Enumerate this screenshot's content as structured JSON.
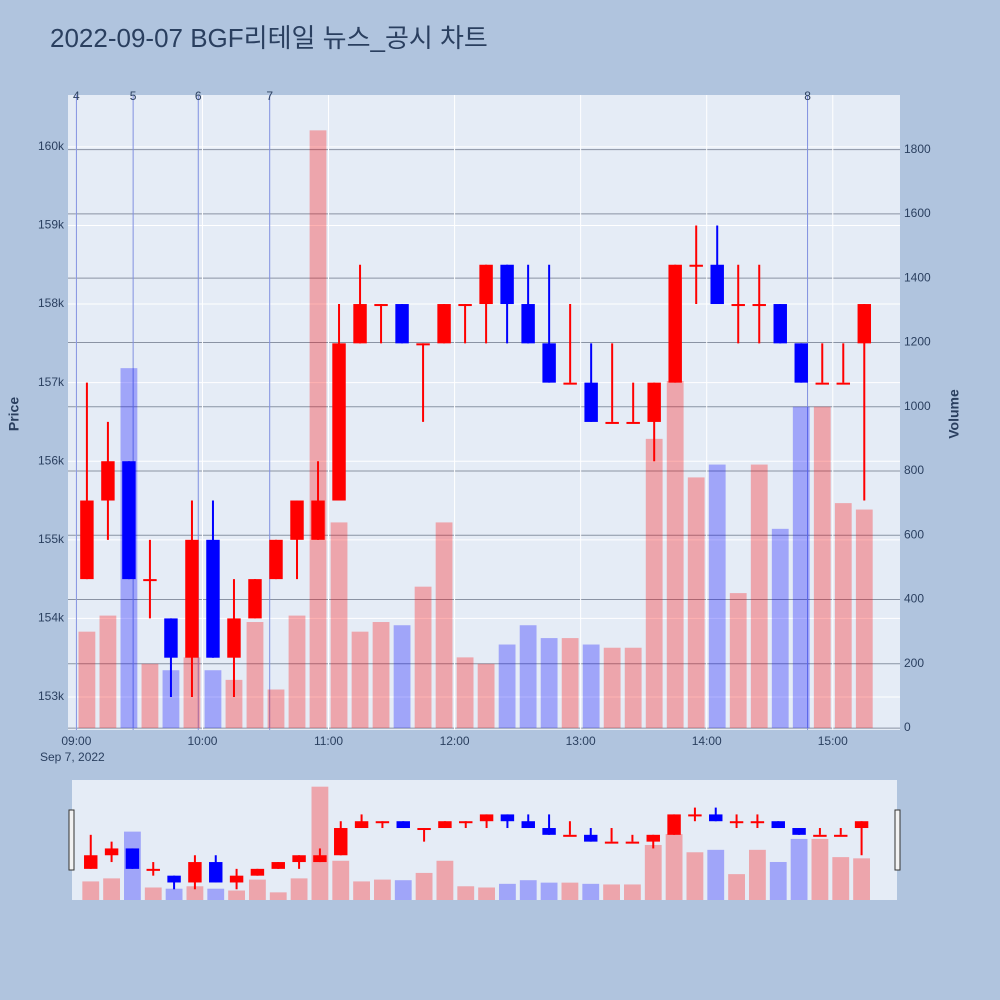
{
  "chart_data": {
    "type": "candlestick",
    "title": "2022-09-07 BGF리테일 뉴스_공시 차트",
    "title_color": "#e8506a",
    "ylabel": "Price",
    "y2label": "Volume",
    "date_label": "Sep 7, 2022",
    "increasing_color": "#ff0000",
    "decreasing_color": "#0000ff",
    "x": [
      "09:00",
      "09:10",
      "09:20",
      "09:30",
      "09:40",
      "09:50",
      "10:00",
      "10:10",
      "10:20",
      "10:30",
      "10:40",
      "10:50",
      "11:00",
      "11:10",
      "11:20",
      "11:30",
      "11:40",
      "11:50",
      "12:00",
      "12:10",
      "12:20",
      "12:30",
      "12:40",
      "12:50",
      "13:00",
      "13:10",
      "13:20",
      "13:30",
      "13:40",
      "13:50",
      "14:00",
      "14:10",
      "14:20",
      "14:30",
      "14:40",
      "14:50",
      "15:00",
      "15:10"
    ],
    "open": [
      154500,
      155500,
      156000,
      154500,
      154000,
      153500,
      155000,
      153500,
      154000,
      154500,
      155000,
      155000,
      155500,
      157500,
      158000,
      158000,
      157500,
      157500,
      158000,
      158000,
      158500,
      158000,
      157500,
      157000,
      157000,
      156500,
      156500,
      156500,
      157000,
      158500,
      158500,
      158000,
      158000,
      158000,
      157500,
      157000,
      157000,
      157500
    ],
    "high": [
      157000,
      156500,
      156000,
      155000,
      154000,
      155500,
      155500,
      154500,
      154500,
      155000,
      155500,
      156000,
      158000,
      158500,
      158000,
      158000,
      157500,
      158000,
      158000,
      158500,
      158500,
      158500,
      158500,
      158000,
      157500,
      157500,
      157000,
      157000,
      158500,
      159000,
      159000,
      158500,
      158500,
      158000,
      157500,
      157500,
      157500,
      158000
    ],
    "low": [
      154500,
      155000,
      154500,
      154000,
      153000,
      153000,
      153500,
      153000,
      154000,
      154500,
      154500,
      155000,
      155500,
      157500,
      157500,
      157500,
      156500,
      157500,
      157500,
      157500,
      157500,
      157500,
      157000,
      157000,
      156500,
      156500,
      156500,
      156000,
      157000,
      158000,
      158000,
      157500,
      157500,
      157500,
      157000,
      157000,
      157000,
      155500
    ],
    "close": [
      155500,
      156000,
      154500,
      154500,
      153500,
      155000,
      153500,
      154000,
      154500,
      155000,
      155500,
      155500,
      157500,
      158000,
      158000,
      157500,
      157500,
      158000,
      158000,
      158500,
      158000,
      157500,
      157000,
      157000,
      156500,
      156500,
      156500,
      157000,
      158500,
      158500,
      158000,
      158000,
      158000,
      157500,
      157000,
      157000,
      157000,
      158000
    ],
    "volume": [
      300,
      350,
      1120,
      200,
      180,
      220,
      180,
      150,
      330,
      120,
      350,
      1860,
      640,
      300,
      330,
      320,
      440,
      640,
      220,
      200,
      260,
      320,
      280,
      280,
      260,
      250,
      250,
      900,
      1080,
      780,
      820,
      420,
      820,
      620,
      1000,
      1000,
      700,
      680
    ],
    "xlim": [
      "08:56",
      "15:32"
    ],
    "xticks": [
      "09:00",
      "10:00",
      "11:00",
      "12:00",
      "13:00",
      "14:00",
      "15:00"
    ],
    "ylim": [
      152580,
      160660
    ],
    "yticks": [
      {
        "value": 153000,
        "label": "153k"
      },
      {
        "value": 154000,
        "label": "154k"
      },
      {
        "value": 155000,
        "label": "155k"
      },
      {
        "value": 156000,
        "label": "156k"
      },
      {
        "value": 157000,
        "label": "157k"
      },
      {
        "value": 158000,
        "label": "158k"
      },
      {
        "value": 159000,
        "label": "159k"
      },
      {
        "value": 160000,
        "label": "160k"
      }
    ],
    "y2lim": [
      -6,
      1970
    ],
    "y2ticks": [
      0,
      200,
      400,
      600,
      800,
      1000,
      1200,
      1400,
      1600,
      1800
    ],
    "annotations": [
      {
        "x": "09:00",
        "label": "4"
      },
      {
        "x": "09:27",
        "label": "5"
      },
      {
        "x": "09:58",
        "label": "6"
      },
      {
        "x": "10:32",
        "label": "7"
      },
      {
        "x": "14:48",
        "label": "8"
      }
    ],
    "grid": true
  }
}
